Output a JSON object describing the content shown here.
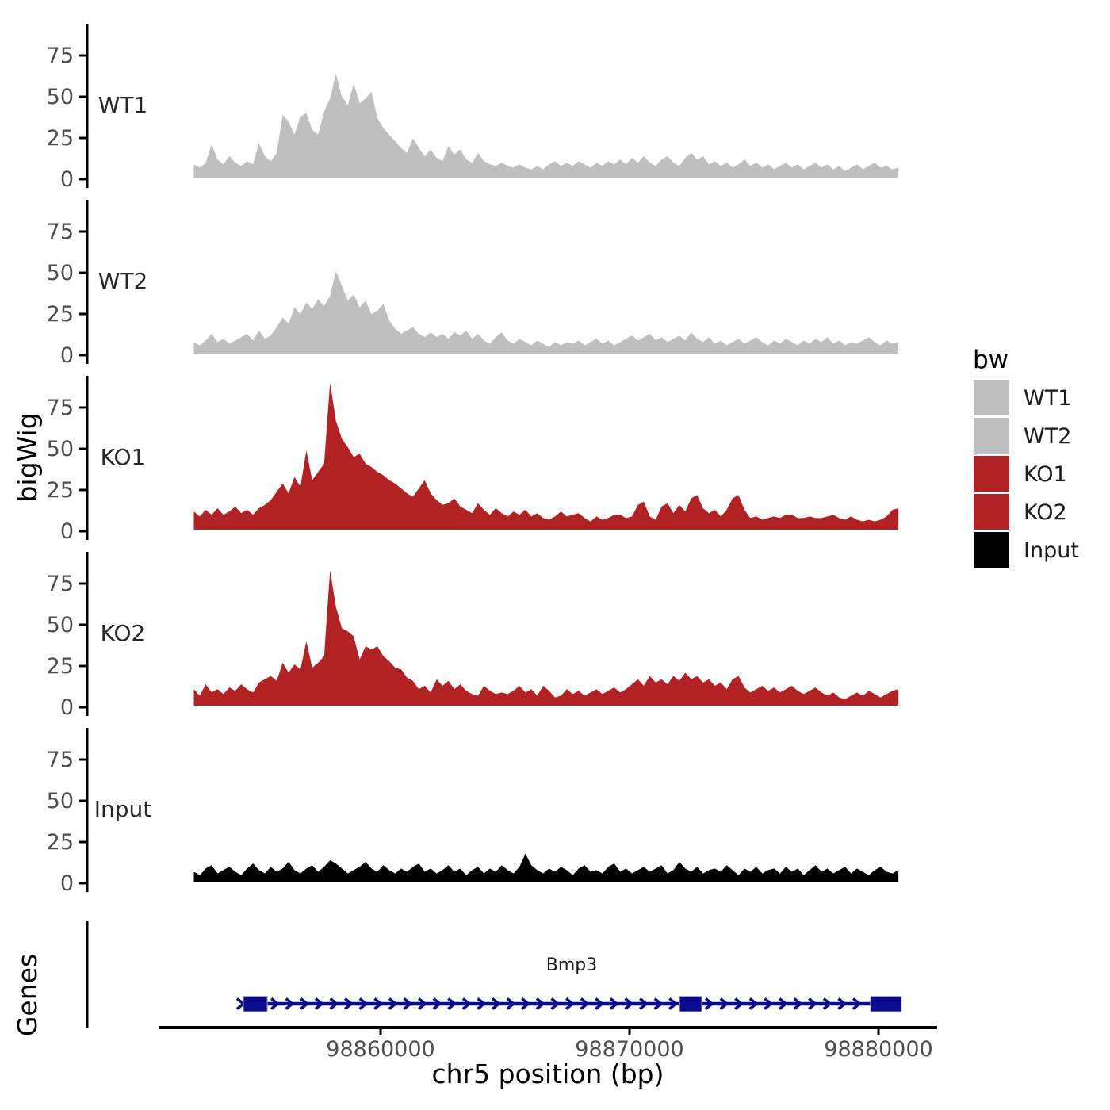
{
  "figure": {
    "y_axis_title": "bigWig",
    "genes_axis_title": "Genes",
    "x_axis_title": "chr5 position (bp)"
  },
  "axis_y": {
    "tick_labels": [
      "0",
      "25",
      "50",
      "75"
    ]
  },
  "axis_x": {
    "ticks": [
      {
        "bp": 98860000,
        "label": "98860000"
      },
      {
        "bp": 98870000,
        "label": "98870000"
      },
      {
        "bp": 98880000,
        "label": "98880000"
      }
    ]
  },
  "legend": {
    "title": "bw",
    "entries": [
      {
        "label": "WT1",
        "color": "#bfbfbf"
      },
      {
        "label": "WT2",
        "color": "#bfbfbf"
      },
      {
        "label": "KO1",
        "color": "#b22222"
      },
      {
        "label": "KO2",
        "color": "#b22222"
      },
      {
        "label": "Input",
        "color": "#000000"
      }
    ]
  },
  "chart_data": {
    "type": "area",
    "title": "",
    "xlabel": "chr5 position (bp)",
    "ylabel": "bigWig",
    "facets": [
      "WT1",
      "WT2",
      "KO1",
      "KO2",
      "Input"
    ],
    "x_start_bp": 98852500,
    "x_end_bp": 98880800,
    "x_ticks_bp": [
      98860000,
      98870000,
      98880000
    ],
    "y_ticks": [
      0,
      25,
      50,
      75
    ],
    "ylim": [
      0,
      90
    ],
    "grid": false,
    "legend_position": "right",
    "series": [
      {
        "name": "WT1",
        "color": "#bfbfbf",
        "values": [
          8,
          6,
          9,
          20,
          11,
          8,
          13,
          9,
          7,
          10,
          8,
          21,
          13,
          10,
          15,
          38,
          34,
          26,
          37,
          39,
          29,
          26,
          40,
          48,
          63,
          49,
          44,
          57,
          45,
          48,
          52,
          36,
          30,
          26,
          22,
          18,
          15,
          24,
          18,
          13,
          17,
          12,
          10,
          19,
          14,
          17,
          11,
          9,
          15,
          10,
          8,
          7,
          9,
          7,
          6,
          8,
          6,
          5,
          7,
          5,
          8,
          10,
          7,
          9,
          7,
          10,
          8,
          6,
          9,
          7,
          10,
          8,
          11,
          8,
          12,
          9,
          13,
          9,
          7,
          11,
          13,
          9,
          7,
          12,
          15,
          11,
          13,
          8,
          10,
          7,
          9,
          6,
          8,
          11,
          7,
          9,
          6,
          8,
          5,
          7,
          9,
          6,
          8,
          5,
          7,
          9,
          6,
          8,
          5,
          7,
          4,
          6,
          8,
          5,
          7,
          9,
          6,
          7,
          5,
          6
        ]
      },
      {
        "name": "WT2",
        "color": "#bfbfbf",
        "values": [
          7,
          5,
          8,
          12,
          7,
          9,
          6,
          8,
          10,
          12,
          8,
          14,
          9,
          11,
          16,
          22,
          18,
          28,
          24,
          31,
          27,
          33,
          29,
          35,
          50,
          41,
          32,
          36,
          28,
          32,
          24,
          26,
          30,
          20,
          15,
          12,
          14,
          16,
          12,
          10,
          13,
          10,
          12,
          9,
          13,
          11,
          14,
          9,
          12,
          8,
          6,
          10,
          13,
          8,
          6,
          9,
          7,
          5,
          8,
          6,
          4,
          7,
          5,
          7,
          6,
          8,
          5,
          7,
          9,
          6,
          8,
          5,
          7,
          9,
          11,
          8,
          10,
          12,
          8,
          10,
          7,
          9,
          11,
          8,
          13,
          9,
          7,
          10,
          6,
          8,
          5,
          7,
          9,
          6,
          8,
          10,
          7,
          5,
          8,
          6,
          9,
          7,
          5,
          8,
          6,
          9,
          7,
          10,
          6,
          8,
          5,
          7,
          6,
          8,
          10,
          7,
          5,
          8,
          6,
          7
        ]
      },
      {
        "name": "KO1",
        "color": "#b22222",
        "values": [
          11,
          8,
          12,
          9,
          13,
          9,
          11,
          14,
          10,
          12,
          9,
          13,
          15,
          18,
          23,
          28,
          22,
          32,
          26,
          48,
          30,
          35,
          40,
          89,
          66,
          55,
          50,
          44,
          46,
          40,
          38,
          35,
          33,
          30,
          28,
          25,
          22,
          20,
          25,
          30,
          22,
          18,
          15,
          16,
          19,
          14,
          12,
          10,
          16,
          12,
          9,
          13,
          10,
          8,
          11,
          9,
          12,
          8,
          10,
          7,
          6,
          8,
          11,
          8,
          9,
          10,
          7,
          5,
          8,
          6,
          7,
          9,
          9,
          7,
          8,
          15,
          17,
          8,
          6,
          14,
          16,
          10,
          15,
          11,
          19,
          21,
          13,
          10,
          12,
          8,
          12,
          19,
          21,
          12,
          7,
          8,
          6,
          7,
          8,
          7,
          9,
          9,
          7,
          7,
          8,
          7,
          7,
          8,
          9,
          7,
          6,
          8,
          6,
          5,
          6,
          5,
          6,
          8,
          12,
          13
        ]
      },
      {
        "name": "KO2",
        "color": "#b22222",
        "values": [
          10,
          6,
          13,
          8,
          10,
          7,
          11,
          9,
          13,
          10,
          8,
          14,
          16,
          18,
          15,
          26,
          20,
          25,
          22,
          39,
          23,
          26,
          30,
          82,
          60,
          47,
          45,
          42,
          28,
          36,
          34,
          36,
          30,
          27,
          23,
          22,
          17,
          15,
          10,
          12,
          8,
          16,
          12,
          15,
          10,
          13,
          9,
          7,
          6,
          12,
          9,
          7,
          8,
          7,
          9,
          12,
          8,
          10,
          6,
          12,
          9,
          5,
          6,
          10,
          7,
          9,
          6,
          8,
          10,
          7,
          9,
          11,
          8,
          10,
          13,
          16,
          12,
          18,
          14,
          16,
          13,
          18,
          15,
          20,
          16,
          18,
          14,
          16,
          12,
          14,
          10,
          16,
          18,
          11,
          8,
          10,
          12,
          9,
          11,
          8,
          10,
          12,
          9,
          7,
          9,
          11,
          8,
          6,
          8,
          5,
          4,
          6,
          8,
          6,
          9,
          7,
          5,
          7,
          9,
          10
        ]
      },
      {
        "name": "Input",
        "color": "#000000",
        "values": [
          6,
          4,
          8,
          10,
          5,
          7,
          9,
          6,
          4,
          8,
          11,
          7,
          5,
          9,
          6,
          8,
          12,
          7,
          5,
          8,
          10,
          6,
          9,
          13,
          11,
          8,
          5,
          7,
          9,
          12,
          8,
          6,
          10,
          7,
          5,
          8,
          6,
          9,
          11,
          6,
          8,
          5,
          7,
          10,
          6,
          8,
          4,
          7,
          9,
          5,
          8,
          6,
          10,
          7,
          5,
          9,
          17,
          10,
          7,
          5,
          8,
          6,
          9,
          7,
          4,
          8,
          10,
          6,
          7,
          5,
          9,
          11,
          6,
          8,
          5,
          7,
          9,
          6,
          8,
          10,
          5,
          7,
          12,
          8,
          6,
          9,
          5,
          7,
          8,
          6,
          10,
          7,
          4,
          8,
          6,
          9,
          5,
          7,
          8,
          5,
          9,
          6,
          8,
          4,
          7,
          10,
          6,
          8,
          5,
          7,
          9,
          5,
          8,
          6,
          4,
          7,
          9,
          6,
          5,
          7
        ]
      }
    ],
    "gene_track": {
      "gene": {
        "name": "Bmp3",
        "strand": "+",
        "start_bp": 98854330,
        "end_bp": 98880920,
        "exons_bp": [
          [
            98854490,
            98855450
          ],
          [
            98872010,
            98872900
          ],
          [
            98879680,
            98880920
          ]
        ],
        "color": "#0b0b8f"
      }
    }
  }
}
